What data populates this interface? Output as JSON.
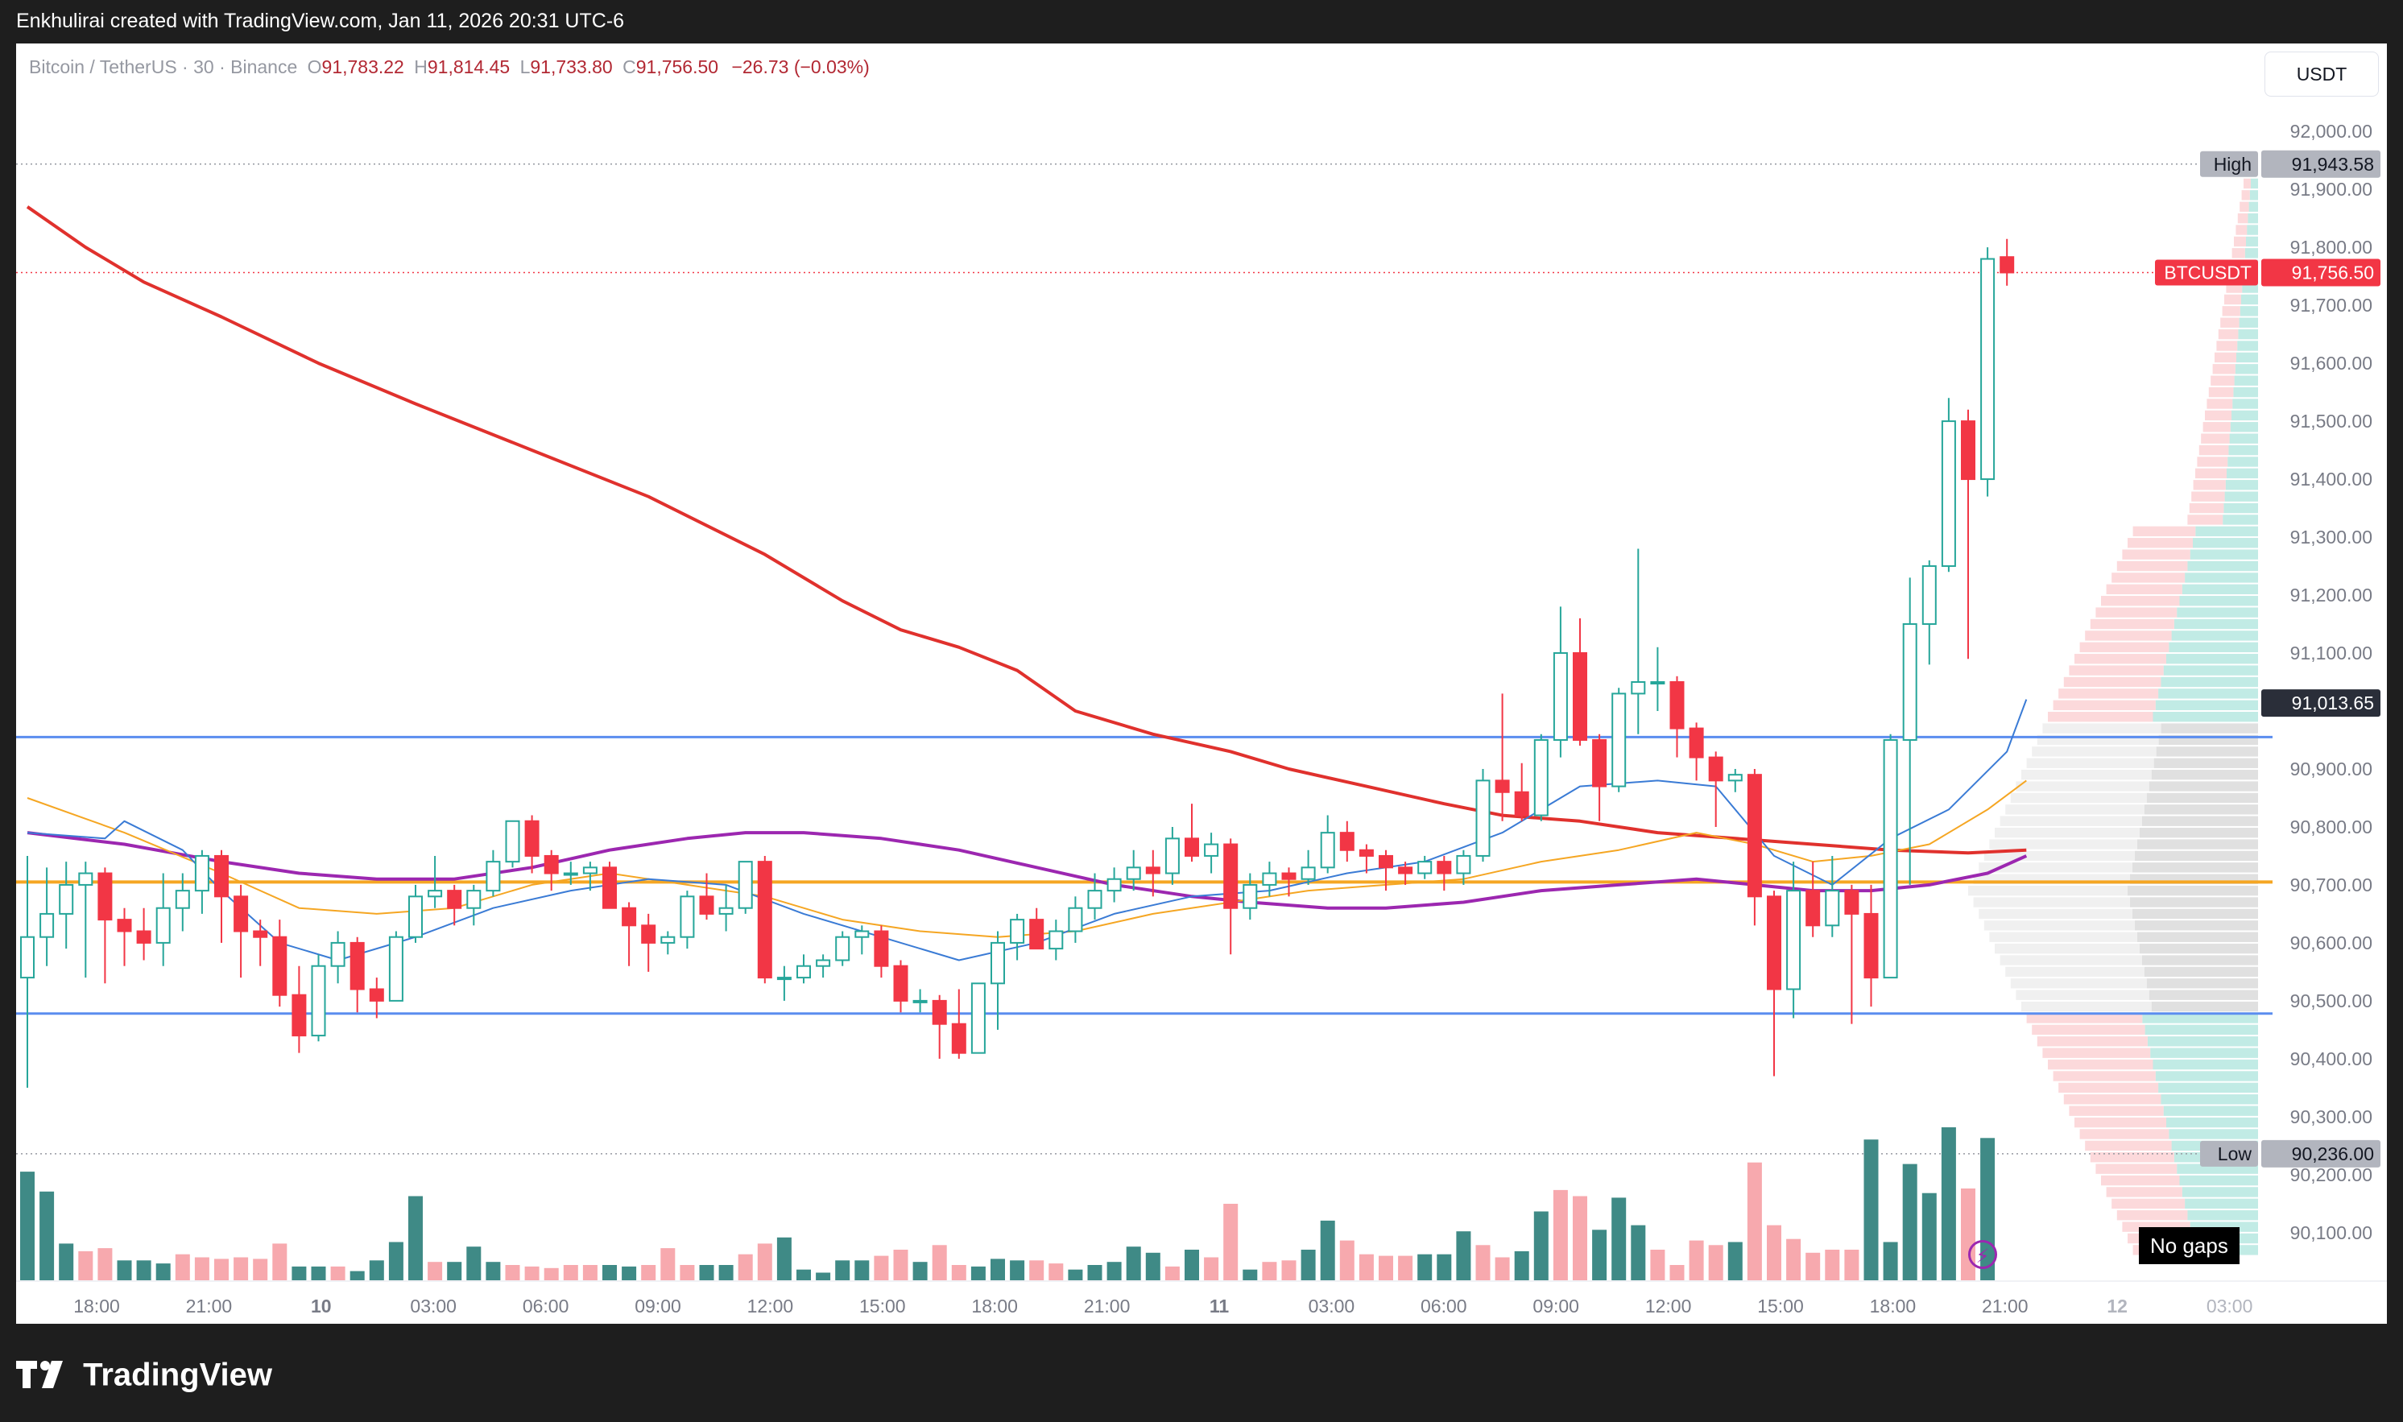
{
  "header": {
    "attribution": "Enkhulirai created with TradingView.com, Jan 11, 2026 20:31 UTC-6"
  },
  "legend": {
    "symbol": "Bitcoin / TetherUS · 30 · Binance",
    "o_label": "O",
    "o_value": "91,783.22",
    "h_label": "H",
    "h_value": "91,814.45",
    "l_label": "L",
    "l_value": "91,733.80",
    "c_label": "C",
    "c_value": "91,756.50",
    "change": "−26.73 (−0.03%)"
  },
  "unit_button": "USDT",
  "no_gaps": "No gaps",
  "footer": {
    "brand": "TradingView"
  },
  "colors": {
    "up": "#26a69a",
    "down": "#f23645",
    "vol_up": "#3f8a86",
    "vol_down": "#f7a9ae",
    "ma200": "#e0312d",
    "purple": "#9c27b0",
    "orange_ma": "#f5a623",
    "blue_ma": "#3a7bd5",
    "level_blue": "#5b8def",
    "level_orange": "#f5a623"
  },
  "chart_data": {
    "type": "candlestick",
    "symbol": "BTCUSDT",
    "interval": "30",
    "y_axis": {
      "ticks": [
        "92,000.00",
        "91,900.00",
        "91,800.00",
        "91,700.00",
        "91,600.00",
        "91,500.00",
        "91,400.00",
        "91,300.00",
        "91,200.00",
        "91,100.00",
        "90,900.00",
        "90,800.00",
        "90,700.00",
        "90,600.00",
        "90,500.00",
        "90,400.00",
        "90,300.00",
        "90,200.00",
        "90,100.00"
      ],
      "range": [
        90040,
        92060
      ]
    },
    "x_axis": {
      "ticks": [
        "18:00",
        "21:00",
        "10",
        "03:00",
        "06:00",
        "09:00",
        "12:00",
        "15:00",
        "18:00",
        "21:00",
        "11",
        "03:00",
        "06:00",
        "09:00",
        "12:00",
        "15:00",
        "18:00",
        "21:00",
        "12",
        "03:00"
      ]
    },
    "price_labels": [
      {
        "label": "High",
        "value": "91,943.58",
        "price": 91943.58
      },
      {
        "label": "BTCUSDT",
        "value": "91,756.50",
        "price": 91756.5
      },
      {
        "label": "",
        "value": "91,013.65",
        "price": 91013.65
      },
      {
        "label": "Low",
        "value": "90,236.00",
        "price": 90236.0
      }
    ],
    "levels": [
      {
        "price": 90955,
        "color": "blue"
      },
      {
        "price": 90705,
        "color": "orange"
      },
      {
        "price": 90478,
        "color": "blue"
      }
    ],
    "candles": [
      [
        90540,
        90750,
        90350,
        90610
      ],
      [
        90610,
        90730,
        90560,
        90650
      ],
      [
        90650,
        90740,
        90590,
        90700
      ],
      [
        90700,
        90740,
        90540,
        90720
      ],
      [
        90720,
        90730,
        90530,
        90640
      ],
      [
        90640,
        90660,
        90560,
        90620
      ],
      [
        90620,
        90660,
        90570,
        90600
      ],
      [
        90600,
        90720,
        90560,
        90660
      ],
      [
        90660,
        90720,
        90620,
        90690
      ],
      [
        90690,
        90760,
        90650,
        90750
      ],
      [
        90750,
        90760,
        90600,
        90680
      ],
      [
        90680,
        90700,
        90540,
        90620
      ],
      [
        90620,
        90640,
        90560,
        90610
      ],
      [
        90610,
        90640,
        90490,
        90510
      ],
      [
        90510,
        90560,
        90410,
        90440
      ],
      [
        90440,
        90580,
        90430,
        90560
      ],
      [
        90560,
        90620,
        90530,
        90600
      ],
      [
        90600,
        90610,
        90480,
        90520
      ],
      [
        90520,
        90540,
        90470,
        90500
      ],
      [
        90500,
        90620,
        90500,
        90610
      ],
      [
        90610,
        90700,
        90600,
        90680
      ],
      [
        90680,
        90750,
        90660,
        90690
      ],
      [
        90690,
        90700,
        90630,
        90660
      ],
      [
        90660,
        90700,
        90630,
        90690
      ],
      [
        90690,
        90760,
        90680,
        90740
      ],
      [
        90740,
        90810,
        90730,
        90810
      ],
      [
        90810,
        90820,
        90720,
        90750
      ],
      [
        90750,
        90760,
        90690,
        90720
      ],
      [
        90720,
        90740,
        90700,
        90720
      ],
      [
        90720,
        90740,
        90690,
        90730
      ],
      [
        90730,
        90740,
        90660,
        90660
      ],
      [
        90660,
        90670,
        90560,
        90630
      ],
      [
        90630,
        90650,
        90550,
        90600
      ],
      [
        90600,
        90620,
        90580,
        90610
      ],
      [
        90610,
        90690,
        90590,
        90680
      ],
      [
        90680,
        90720,
        90640,
        90650
      ],
      [
        90650,
        90700,
        90620,
        90660
      ],
      [
        90660,
        90740,
        90650,
        90740
      ],
      [
        90740,
        90750,
        90530,
        90540
      ],
      [
        90540,
        90560,
        90500,
        90540
      ],
      [
        90540,
        90580,
        90530,
        90560
      ],
      [
        90560,
        90580,
        90540,
        90570
      ],
      [
        90570,
        90620,
        90560,
        90610
      ],
      [
        90610,
        90630,
        90580,
        90620
      ],
      [
        90620,
        90630,
        90540,
        90560
      ],
      [
        90560,
        90570,
        90480,
        90500
      ],
      [
        90500,
        90520,
        90480,
        90500
      ],
      [
        90500,
        90510,
        90400,
        90460
      ],
      [
        90460,
        90520,
        90400,
        90410
      ],
      [
        90410,
        90530,
        90410,
        90530
      ],
      [
        90530,
        90620,
        90450,
        90600
      ],
      [
        90600,
        90650,
        90570,
        90640
      ],
      [
        90640,
        90660,
        90590,
        90590
      ],
      [
        90590,
        90640,
        90570,
        90620
      ],
      [
        90620,
        90680,
        90600,
        90660
      ],
      [
        90660,
        90720,
        90640,
        90690
      ],
      [
        90690,
        90730,
        90670,
        90710
      ],
      [
        90710,
        90760,
        90690,
        90730
      ],
      [
        90730,
        90760,
        90680,
        90720
      ],
      [
        90720,
        90800,
        90700,
        90780
      ],
      [
        90780,
        90840,
        90740,
        90750
      ],
      [
        90750,
        90790,
        90720,
        90770
      ],
      [
        90770,
        90780,
        90580,
        90660
      ],
      [
        90660,
        90720,
        90640,
        90700
      ],
      [
        90700,
        90740,
        90680,
        90720
      ],
      [
        90720,
        90730,
        90680,
        90710
      ],
      [
        90710,
        90760,
        90700,
        90730
      ],
      [
        90730,
        90820,
        90720,
        90790
      ],
      [
        90790,
        90810,
        90740,
        90760
      ],
      [
        90760,
        90770,
        90720,
        90750
      ],
      [
        90750,
        90760,
        90690,
        90730
      ],
      [
        90730,
        90740,
        90700,
        90720
      ],
      [
        90720,
        90750,
        90710,
        90740
      ],
      [
        90740,
        90750,
        90690,
        90720
      ],
      [
        90720,
        90760,
        90700,
        90750
      ],
      [
        90750,
        90900,
        90740,
        90880
      ],
      [
        90880,
        91030,
        90810,
        90860
      ],
      [
        90860,
        90910,
        90810,
        90820
      ],
      [
        90820,
        90960,
        90810,
        90950
      ],
      [
        90950,
        91180,
        90920,
        91100
      ],
      [
        91100,
        91160,
        90940,
        90950
      ],
      [
        90950,
        90960,
        90810,
        90870
      ],
      [
        90870,
        91040,
        90860,
        91030
      ],
      [
        91030,
        91280,
        90960,
        91050
      ],
      [
        91050,
        91110,
        91000,
        91050
      ],
      [
        91050,
        91060,
        90920,
        90970
      ],
      [
        90970,
        90980,
        90880,
        90920
      ],
      [
        90920,
        90930,
        90800,
        90880
      ],
      [
        90880,
        90900,
        90860,
        90890
      ],
      [
        90890,
        90900,
        90630,
        90680
      ],
      [
        90680,
        90690,
        90370,
        90520
      ],
      [
        90520,
        90740,
        90470,
        90690
      ],
      [
        90690,
        90740,
        90610,
        90630
      ],
      [
        90630,
        90750,
        90610,
        90690
      ],
      [
        90690,
        90700,
        90460,
        90650
      ],
      [
        90650,
        90700,
        90490,
        90540
      ],
      [
        90540,
        90960,
        90540,
        90950
      ],
      [
        90950,
        91230,
        90700,
        91150
      ],
      [
        91150,
        91260,
        91080,
        91250
      ],
      [
        91250,
        91540,
        91240,
        91500
      ],
      [
        91500,
        91520,
        91090,
        91400
      ],
      [
        91400,
        91800,
        91370,
        91780
      ],
      [
        91783.22,
        91814.45,
        91733.8,
        91756.5
      ]
    ],
    "volumes": [
      [
        0,
        0.71
      ],
      [
        0,
        0.58
      ],
      [
        0,
        0.24
      ],
      [
        1,
        0.19
      ],
      [
        1,
        0.21
      ],
      [
        0,
        0.13
      ],
      [
        0,
        0.13
      ],
      [
        0,
        0.11
      ],
      [
        1,
        0.17
      ],
      [
        1,
        0.15
      ],
      [
        1,
        0.14
      ],
      [
        1,
        0.15
      ],
      [
        1,
        0.14
      ],
      [
        1,
        0.24
      ],
      [
        0,
        0.09
      ],
      [
        0,
        0.09
      ],
      [
        1,
        0.09
      ],
      [
        0,
        0.06
      ],
      [
        0,
        0.13
      ],
      [
        0,
        0.25
      ],
      [
        0,
        0.55
      ],
      [
        1,
        0.12
      ],
      [
        0,
        0.12
      ],
      [
        0,
        0.22
      ],
      [
        0,
        0.12
      ],
      [
        1,
        0.1
      ],
      [
        1,
        0.09
      ],
      [
        1,
        0.08
      ],
      [
        1,
        0.1
      ],
      [
        1,
        0.1
      ],
      [
        0,
        0.1
      ],
      [
        0,
        0.09
      ],
      [
        1,
        0.1
      ],
      [
        1,
        0.21
      ],
      [
        1,
        0.1
      ],
      [
        0,
        0.1
      ],
      [
        0,
        0.1
      ],
      [
        1,
        0.17
      ],
      [
        1,
        0.24
      ],
      [
        0,
        0.28
      ],
      [
        0,
        0.07
      ],
      [
        0,
        0.05
      ],
      [
        0,
        0.13
      ],
      [
        0,
        0.13
      ],
      [
        1,
        0.16
      ],
      [
        1,
        0.2
      ],
      [
        0,
        0.12
      ],
      [
        1,
        0.23
      ],
      [
        1,
        0.1
      ],
      [
        0,
        0.09
      ],
      [
        0,
        0.14
      ],
      [
        0,
        0.13
      ],
      [
        1,
        0.13
      ],
      [
        1,
        0.11
      ],
      [
        0,
        0.07
      ],
      [
        0,
        0.1
      ],
      [
        0,
        0.12
      ],
      [
        0,
        0.22
      ],
      [
        0,
        0.18
      ],
      [
        1,
        0.09
      ],
      [
        0,
        0.2
      ],
      [
        1,
        0.15
      ],
      [
        1,
        0.5
      ],
      [
        0,
        0.07
      ],
      [
        1,
        0.12
      ],
      [
        1,
        0.13
      ],
      [
        0,
        0.2
      ],
      [
        0,
        0.39
      ],
      [
        1,
        0.26
      ],
      [
        1,
        0.17
      ],
      [
        1,
        0.16
      ],
      [
        1,
        0.16
      ],
      [
        0,
        0.17
      ],
      [
        0,
        0.17
      ],
      [
        0,
        0.32
      ],
      [
        1,
        0.23
      ],
      [
        1,
        0.15
      ],
      [
        0,
        0.19
      ],
      [
        0,
        0.45
      ],
      [
        1,
        0.59
      ],
      [
        1,
        0.55
      ],
      [
        0,
        0.33
      ],
      [
        0,
        0.54
      ],
      [
        0,
        0.36
      ],
      [
        1,
        0.2
      ],
      [
        1,
        0.1
      ],
      [
        1,
        0.26
      ],
      [
        1,
        0.23
      ],
      [
        0,
        0.25
      ],
      [
        1,
        0.77
      ],
      [
        1,
        0.36
      ],
      [
        1,
        0.27
      ],
      [
        1,
        0.18
      ],
      [
        1,
        0.2
      ],
      [
        1,
        0.2
      ],
      [
        0,
        0.92
      ],
      [
        0,
        0.25
      ],
      [
        0,
        0.76
      ],
      [
        0,
        0.57
      ],
      [
        0,
        1.0
      ],
      [
        1,
        0.6
      ],
      [
        0,
        0.93
      ],
      [
        0,
        0.0
      ]
    ],
    "ma200": [
      [
        0,
        91870
      ],
      [
        3,
        91800
      ],
      [
        6,
        91740
      ],
      [
        10,
        91680
      ],
      [
        15,
        91600
      ],
      [
        20,
        91530
      ],
      [
        26,
        91450
      ],
      [
        32,
        91370
      ],
      [
        38,
        91270
      ],
      [
        42,
        91190
      ],
      [
        45,
        91140
      ],
      [
        48,
        91110
      ],
      [
        51,
        91070
      ],
      [
        54,
        91000
      ],
      [
        58,
        90960
      ],
      [
        62,
        90930
      ],
      [
        65,
        90900
      ],
      [
        69,
        90870
      ],
      [
        73,
        90840
      ],
      [
        76,
        90820
      ],
      [
        80,
        90810
      ],
      [
        84,
        90790
      ],
      [
        88,
        90780
      ],
      [
        92,
        90770
      ],
      [
        96,
        90760
      ],
      [
        100,
        90755
      ],
      [
        103,
        90760
      ]
    ],
    "ma_purple": [
      [
        0,
        90790
      ],
      [
        5,
        90770
      ],
      [
        10,
        90740
      ],
      [
        14,
        90720
      ],
      [
        18,
        90710
      ],
      [
        22,
        90710
      ],
      [
        26,
        90730
      ],
      [
        30,
        90760
      ],
      [
        34,
        90780
      ],
      [
        37,
        90790
      ],
      [
        40,
        90790
      ],
      [
        44,
        90780
      ],
      [
        48,
        90760
      ],
      [
        52,
        90730
      ],
      [
        56,
        90700
      ],
      [
        60,
        90680
      ],
      [
        63,
        90670
      ],
      [
        67,
        90660
      ],
      [
        70,
        90660
      ],
      [
        74,
        90670
      ],
      [
        78,
        90690
      ],
      [
        82,
        90700
      ],
      [
        86,
        90710
      ],
      [
        89,
        90700
      ],
      [
        92,
        90690
      ],
      [
        95,
        90690
      ],
      [
        98,
        90700
      ],
      [
        101,
        90720
      ],
      [
        103,
        90750
      ]
    ],
    "ma_orange": [
      [
        0,
        90850
      ],
      [
        5,
        90790
      ],
      [
        10,
        90720
      ],
      [
        14,
        90660
      ],
      [
        18,
        90650
      ],
      [
        22,
        90660
      ],
      [
        26,
        90700
      ],
      [
        30,
        90720
      ],
      [
        34,
        90700
      ],
      [
        38,
        90680
      ],
      [
        42,
        90640
      ],
      [
        46,
        90620
      ],
      [
        50,
        90610
      ],
      [
        54,
        90620
      ],
      [
        58,
        90650
      ],
      [
        62,
        90670
      ],
      [
        66,
        90690
      ],
      [
        70,
        90700
      ],
      [
        74,
        90710
      ],
      [
        78,
        90740
      ],
      [
        82,
        90760
      ],
      [
        86,
        90790
      ],
      [
        89,
        90770
      ],
      [
        92,
        90740
      ],
      [
        95,
        90750
      ],
      [
        98,
        90770
      ],
      [
        101,
        90830
      ],
      [
        103,
        90880
      ]
    ],
    "ma_blue": [
      [
        0,
        90790
      ],
      [
        4,
        90780
      ],
      [
        5,
        90810
      ],
      [
        8,
        90760
      ],
      [
        10,
        90690
      ],
      [
        13,
        90600
      ],
      [
        16,
        90570
      ],
      [
        20,
        90610
      ],
      [
        24,
        90660
      ],
      [
        28,
        90690
      ],
      [
        32,
        90710
      ],
      [
        36,
        90700
      ],
      [
        40,
        90650
      ],
      [
        44,
        90610
      ],
      [
        48,
        90570
      ],
      [
        52,
        90600
      ],
      [
        56,
        90650
      ],
      [
        60,
        90680
      ],
      [
        64,
        90690
      ],
      [
        68,
        90720
      ],
      [
        72,
        90740
      ],
      [
        76,
        90790
      ],
      [
        80,
        90870
      ],
      [
        84,
        90880
      ],
      [
        87,
        90870
      ],
      [
        90,
        90750
      ],
      [
        93,
        90700
      ],
      [
        96,
        90780
      ],
      [
        99,
        90830
      ],
      [
        102,
        90930
      ],
      [
        103,
        91020
      ]
    ]
  }
}
